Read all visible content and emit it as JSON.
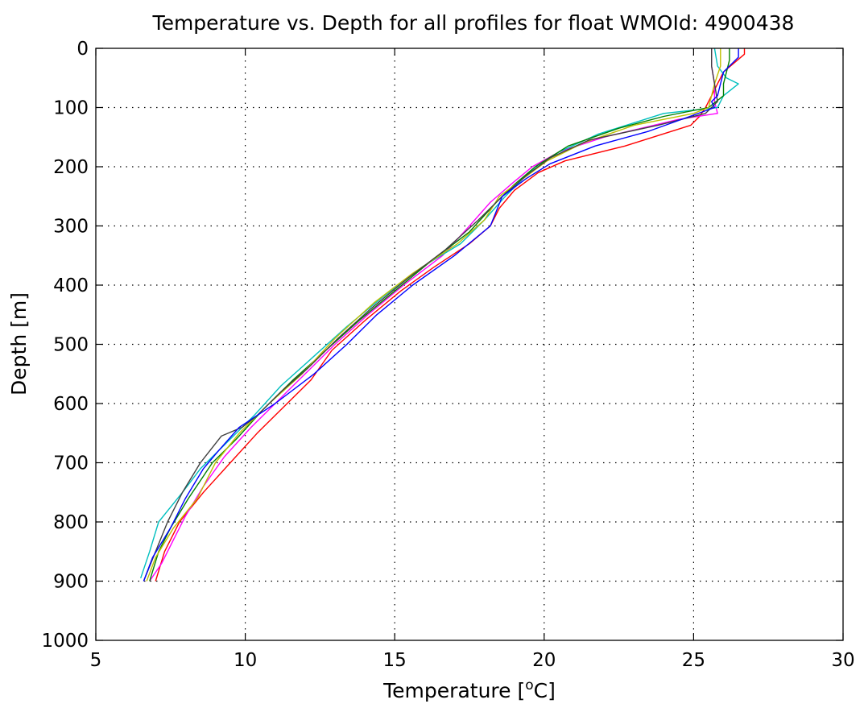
{
  "chart_data": {
    "type": "line",
    "title": "Temperature vs. Depth for all profiles for float WMOId: 4900438",
    "xlabel": "Temperature [",
    "xlabel_sup": "o",
    "xlabel_end": "C]",
    "ylabel": "Depth [m]",
    "xlim": [
      5,
      30
    ],
    "ylim": [
      0,
      1000
    ],
    "y_reversed": true,
    "grid": true,
    "x_ticks": [
      "5",
      "10",
      "15",
      "20",
      "25",
      "30"
    ],
    "y_ticks": [
      "0",
      "100",
      "200",
      "300",
      "400",
      "500",
      "600",
      "700",
      "800",
      "900",
      "1000"
    ],
    "series": [
      {
        "color": "#ff0000",
        "x": [
          26.7,
          26.7,
          26.0,
          25.8,
          25.6,
          25.4,
          25.2,
          24.9,
          22.7,
          20.7,
          19.8,
          19.0,
          18.5,
          18.2,
          17.5,
          16.3,
          15.2,
          14.0,
          12.9,
          12.2,
          11.4,
          10.4,
          9.5,
          8.6,
          7.8,
          7.3,
          7.0
        ],
        "y": [
          0,
          10,
          40,
          60,
          80,
          100,
          115,
          130,
          165,
          190,
          210,
          240,
          270,
          300,
          330,
          370,
          410,
          460,
          510,
          560,
          600,
          650,
          700,
          750,
          800,
          850,
          900
        ]
      },
      {
        "color": "#ff00ff",
        "x": [
          25.6,
          25.6,
          25.7,
          25.7,
          25.8,
          24.5,
          22.0,
          20.5,
          19.6,
          19.0,
          18.2,
          17.5,
          16.6,
          15.3,
          14.1,
          13.0,
          12.0,
          11.0,
          10.2,
          9.3,
          8.6,
          8.0,
          7.6,
          7.2,
          6.8
        ],
        "y": [
          0,
          30,
          60,
          90,
          110,
          120,
          150,
          175,
          200,
          225,
          260,
          300,
          350,
          400,
          450,
          500,
          550,
          600,
          640,
          690,
          740,
          790,
          830,
          870,
          900
        ]
      },
      {
        "color": "#00bfbf",
        "x": [
          25.7,
          25.8,
          26.1,
          26.5,
          26.0,
          25.8,
          24.0,
          21.8,
          20.5,
          19.5,
          18.7,
          18.0,
          17.2,
          15.9,
          14.6,
          13.4,
          12.3,
          11.2,
          10.3,
          9.5,
          8.5,
          7.9,
          7.1,
          6.8,
          6.5
        ],
        "y": [
          0,
          30,
          50,
          60,
          80,
          100,
          110,
          145,
          175,
          210,
          250,
          290,
          330,
          370,
          420,
          470,
          520,
          570,
          620,
          660,
          710,
          750,
          800,
          850,
          895
        ]
      },
      {
        "color": "#008000",
        "x": [
          26.2,
          26.2,
          26.1,
          26.0,
          26.0,
          25.5,
          24.0,
          22.5,
          20.8,
          19.7,
          19.0,
          18.4,
          17.5,
          16.2,
          15.0,
          13.8,
          12.7,
          11.6,
          10.6,
          9.7,
          8.9,
          8.1,
          7.5,
          7.1,
          6.8
        ],
        "y": [
          0,
          20,
          40,
          60,
          80,
          100,
          115,
          135,
          165,
          200,
          230,
          260,
          310,
          360,
          410,
          460,
          510,
          560,
          610,
          660,
          700,
          760,
          810,
          850,
          900
        ]
      },
      {
        "color": "#bfbf00",
        "x": [
          25.9,
          25.9,
          25.7,
          25.6,
          25.5,
          25.0,
          23.0,
          21.3,
          20.1,
          19.3,
          18.5,
          18.0,
          17.1,
          15.6,
          14.3,
          13.0,
          11.9,
          10.8,
          9.8,
          9.0,
          8.4,
          7.6,
          7.0,
          6.7
        ],
        "y": [
          0,
          30,
          60,
          80,
          100,
          110,
          130,
          160,
          190,
          220,
          250,
          290,
          330,
          380,
          430,
          490,
          550,
          600,
          650,
          700,
          760,
          810,
          860,
          900
        ]
      },
      {
        "color": "#404040",
        "x": [
          25.6,
          25.6,
          25.7,
          25.8,
          25.4,
          23.8,
          21.5,
          20.2,
          19.4,
          18.6,
          17.8,
          16.7,
          15.4,
          14.2,
          13.1,
          12.1,
          11.2,
          10.4,
          9.9,
          9.2,
          8.5,
          7.9,
          7.4,
          7.0,
          6.6
        ],
        "y": [
          0,
          30,
          60,
          90,
          110,
          130,
          155,
          185,
          215,
          250,
          290,
          340,
          390,
          440,
          490,
          540,
          580,
          620,
          640,
          655,
          700,
          750,
          800,
          850,
          900
        ]
      },
      {
        "color": "#0000ff",
        "x": [
          26.5,
          26.5,
          26.0,
          25.9,
          25.8,
          25.6,
          25.7,
          23.5,
          21.7,
          20.2,
          19.4,
          18.6,
          18.2,
          17.0,
          15.6,
          14.4,
          13.4,
          12.3,
          11.0,
          9.8,
          9.1,
          8.6,
          8.0,
          7.5,
          6.9,
          6.6
        ],
        "y": [
          0,
          15,
          40,
          60,
          80,
          90,
          100,
          140,
          165,
          195,
          220,
          250,
          300,
          350,
          400,
          450,
          500,
          550,
          600,
          640,
          680,
          710,
          760,
          810,
          860,
          900
        ]
      }
    ]
  }
}
